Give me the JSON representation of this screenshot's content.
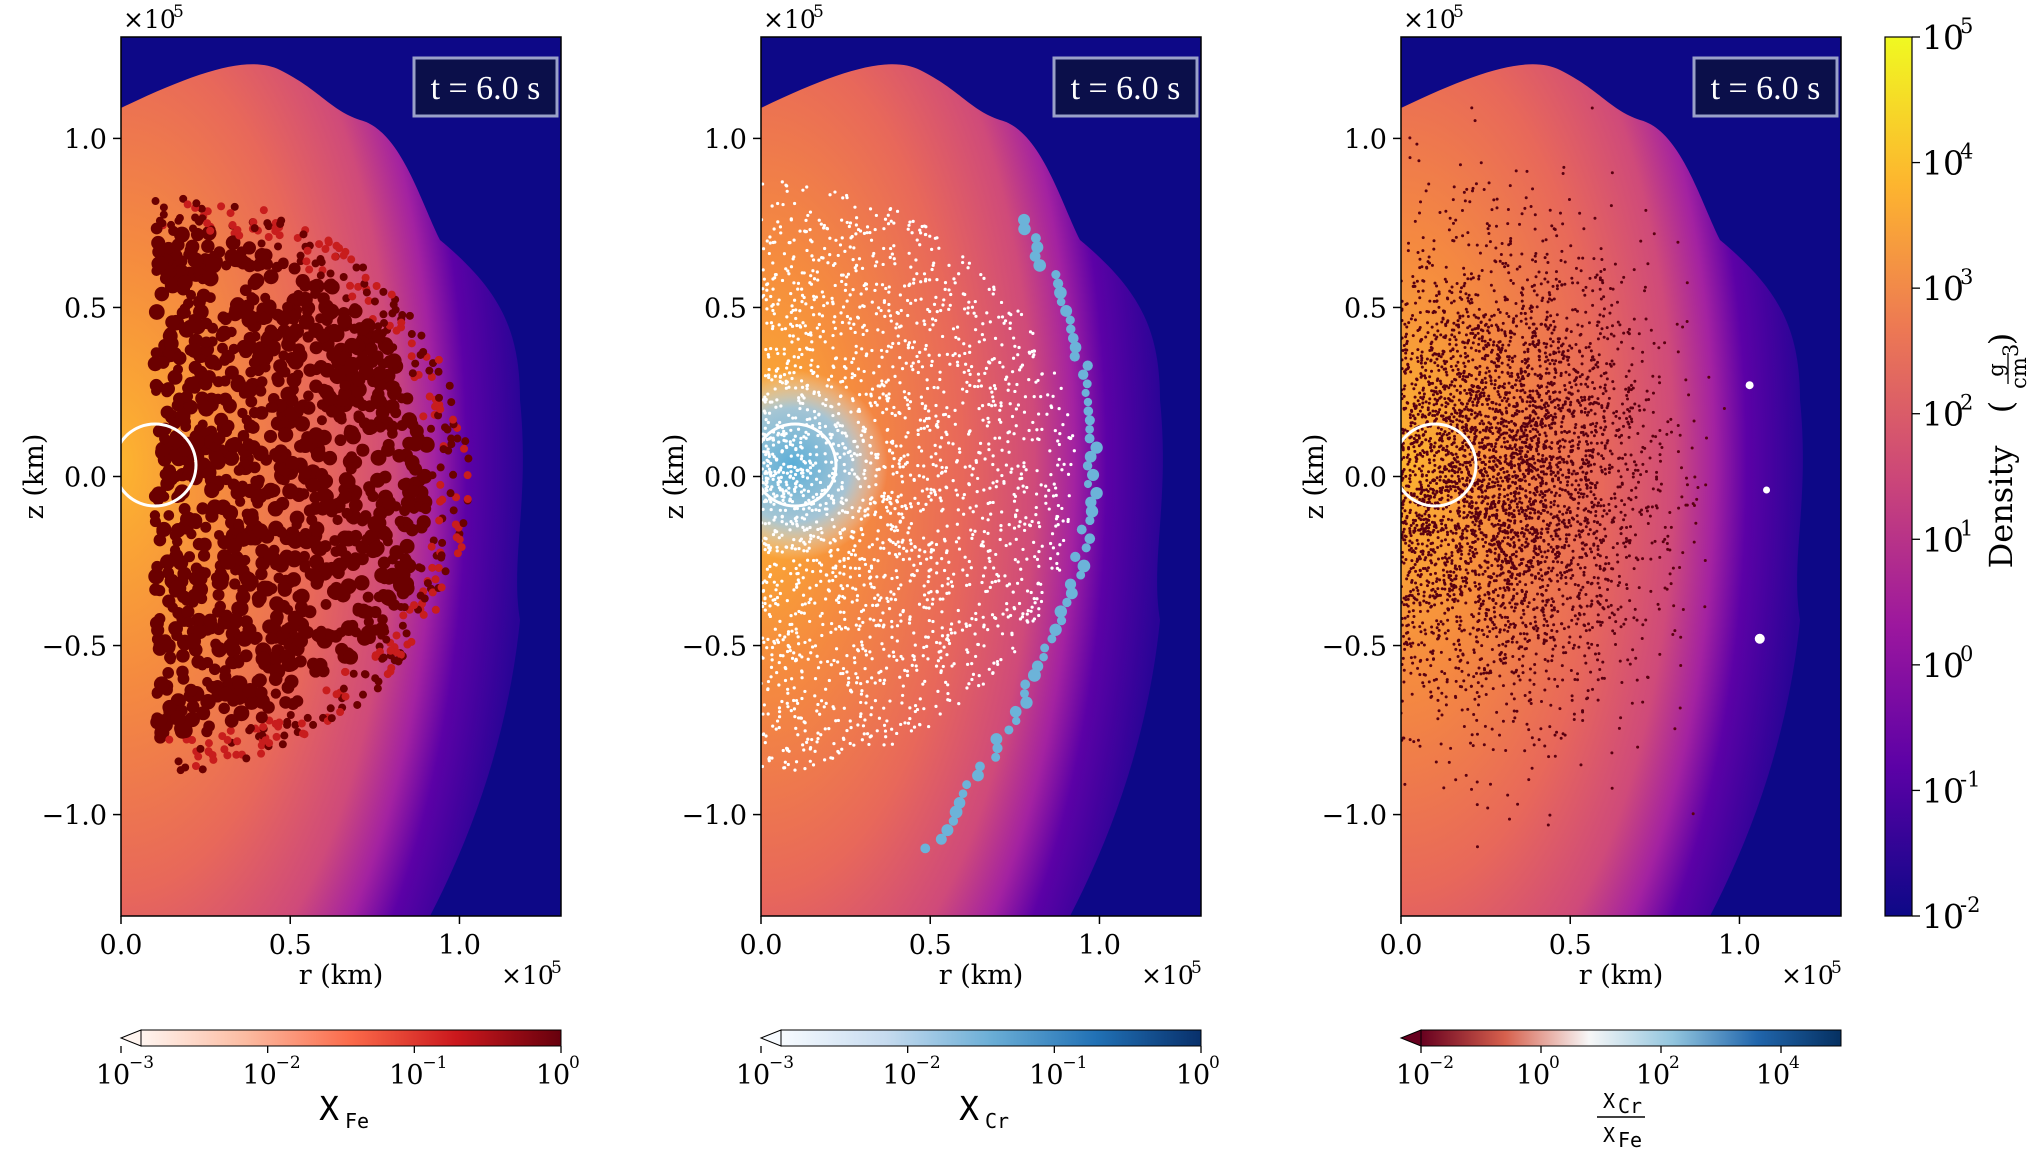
{
  "chart_data": [
    {
      "type": "scatter",
      "panel": "Fe",
      "time_label": "t = 6.0 s",
      "xlabel": "r (km)",
      "ylabel": "z (km)",
      "x_multiplier": "×10",
      "y_multiplier": "×10",
      "multiplier_exponent": "5",
      "xlim": [
        0,
        1.3
      ],
      "ylim": [
        -1.3,
        1.3
      ],
      "xticks": [
        "0.0",
        "0.5",
        "1.0"
      ],
      "yticks": [
        "−1.0",
        "−0.5",
        "0.0",
        "0.5",
        "1.0"
      ],
      "marker_quantity": "X_Fe",
      "colorbar": {
        "label_main": "X",
        "label_sub": "Fe",
        "scale": "log",
        "tick_base": "10",
        "tick_exponents": [
          "−3",
          "−2",
          "−1",
          "0"
        ],
        "range_exp": [
          -3,
          0
        ],
        "colors": [
          "#fff5f0",
          "#fcbba1",
          "#fb6a4a",
          "#cb181d",
          "#67000d"
        ]
      },
      "circle_marker": {
        "r": 0.1,
        "z": 0.03,
        "radius": 0.12
      }
    },
    {
      "type": "scatter",
      "panel": "Cr",
      "time_label": "t = 6.0 s",
      "xlabel": "r (km)",
      "ylabel": "z (km)",
      "x_multiplier": "×10",
      "y_multiplier": "×10",
      "multiplier_exponent": "5",
      "xlim": [
        0,
        1.3
      ],
      "ylim": [
        -1.3,
        1.3
      ],
      "xticks": [
        "0.0",
        "0.5",
        "1.0"
      ],
      "yticks": [
        "−1.0",
        "−0.5",
        "0.0",
        "0.5",
        "1.0"
      ],
      "marker_quantity": "X_Cr",
      "colorbar": {
        "label_main": "X",
        "label_sub": "Cr",
        "scale": "log",
        "tick_base": "10",
        "tick_exponents": [
          "−3",
          "−2",
          "−1",
          "0"
        ],
        "range_exp": [
          -3,
          0
        ],
        "colors": [
          "#f7fbff",
          "#c6dbef",
          "#6baed6",
          "#2171b5",
          "#08306b"
        ]
      },
      "circle_marker": {
        "r": 0.1,
        "z": 0.03,
        "radius": 0.12
      }
    },
    {
      "type": "scatter",
      "panel": "ratio",
      "time_label": "t = 6.0 s",
      "xlabel": "r (km)",
      "ylabel": "z (km)",
      "x_multiplier": "×10",
      "y_multiplier": "×10",
      "multiplier_exponent": "5",
      "xlim": [
        0,
        1.3
      ],
      "ylim": [
        -1.3,
        1.3
      ],
      "xticks": [
        "0.0",
        "0.5",
        "1.0"
      ],
      "yticks": [
        "−1.0",
        "−0.5",
        "0.0",
        "0.5",
        "1.0"
      ],
      "marker_quantity": "X_Cr / X_Fe",
      "colorbar": {
        "label_num": "X",
        "label_num_sub": "Cr",
        "label_den": "X",
        "label_den_sub": "Fe",
        "scale": "log",
        "tick_base": "10",
        "tick_exponents": [
          "−2",
          "0",
          "2",
          "4"
        ],
        "range_exp": [
          -2,
          5
        ],
        "colors": [
          "#67001f",
          "#d6604d",
          "#f7f7f7",
          "#92c5de",
          "#2166ac",
          "#053061"
        ]
      },
      "circle_marker": {
        "r": 0.1,
        "z": 0.03,
        "radius": 0.12
      }
    }
  ],
  "density_colorbar": {
    "label": "Density",
    "unit_num": "g",
    "unit_den": "cm",
    "unit_den_exp": "3",
    "tick_base": "10",
    "tick_exponents": [
      "-2",
      "-1",
      "0",
      "1",
      "2",
      "3",
      "4",
      "5"
    ],
    "colors": [
      "#0d0887",
      "#5c01a6",
      "#9c179e",
      "#cc4778",
      "#ed7953",
      "#fdb42f",
      "#f0f921"
    ]
  }
}
